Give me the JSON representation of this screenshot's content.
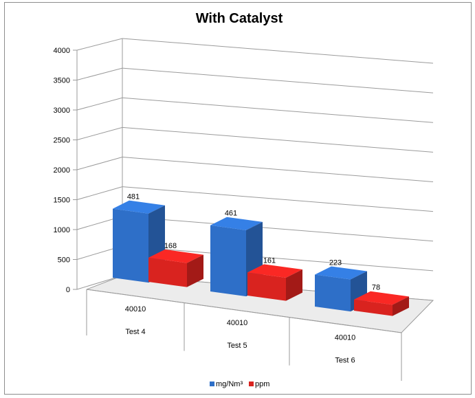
{
  "chart_data": {
    "type": "bar",
    "title": "With Catalyst",
    "categories": [
      {
        "label": "Test 4",
        "sublabel": "40010"
      },
      {
        "label": "Test 5",
        "sublabel": "40010"
      },
      {
        "label": "Test 6",
        "sublabel": "40010"
      }
    ],
    "series": [
      {
        "name": "mg/Nm³",
        "values": [
          481,
          461,
          223
        ],
        "color": "#2e6fc8"
      },
      {
        "name": "ppm",
        "values": [
          168,
          161,
          78
        ],
        "color": "#d9231f"
      }
    ],
    "ylim": [
      0,
      4000
    ],
    "yticks": [
      "0",
      "500",
      "1000",
      "1500",
      "2000",
      "2500",
      "3000",
      "3500",
      "4000"
    ],
    "grid": true,
    "legend_position": "bottom",
    "style": "3d-column"
  }
}
